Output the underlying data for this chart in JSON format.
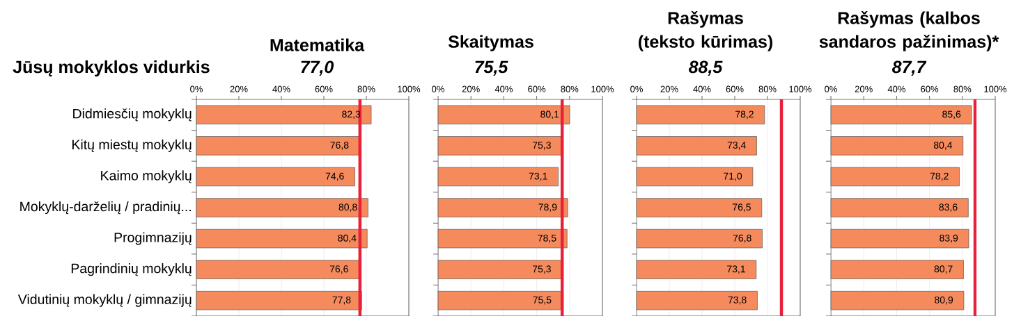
{
  "chart_data": [
    {
      "type": "bar",
      "orientation": "horizontal",
      "title": "Matematika",
      "subtitle": "77,0",
      "categories": [
        "Didmiesčių mokyklų",
        "Kitų miestų mokyklų",
        "Kaimo mokyklų",
        "Mokyklų-darželių / pradinių...",
        "Progimnazijų",
        "Pagrindinių mokyklų",
        "Vidutinių mokyklų / gimnazijų"
      ],
      "values": [
        82.3,
        76.8,
        74.6,
        80.8,
        80.4,
        76.6,
        77.8
      ],
      "value_labels": [
        "82,3",
        "76,8",
        "74,6",
        "80,8",
        "80,4",
        "76,6",
        "77,8"
      ],
      "color": "#f58a5c",
      "xlim": [
        0,
        100
      ],
      "xticks": [
        {
          "value": 0,
          "label": "0%"
        },
        {
          "value": 20,
          "label": "20%"
        },
        {
          "value": 40,
          "label": "40%"
        },
        {
          "value": 60,
          "label": "60%"
        },
        {
          "value": 80,
          "label": "80%"
        },
        {
          "value": 100,
          "label": "100%"
        }
      ],
      "grid": "x",
      "ref_lines": [
        {
          "axis": "x",
          "value": 77.0,
          "color": "#e8203a"
        }
      ],
      "annotations": [
        "Jūsų mokyklos vidurkis"
      ]
    },
    {
      "type": "bar",
      "orientation": "horizontal",
      "title": "Skaitymas",
      "subtitle": "75,5",
      "categories": [
        null,
        null,
        null,
        null,
        null,
        null,
        null
      ],
      "values": [
        80.1,
        75.3,
        73.1,
        78.9,
        78.5,
        75.3,
        75.5
      ],
      "value_labels": [
        "80,1",
        "75,3",
        "73,1",
        "78,9",
        "78,5",
        "75,3",
        "75,5"
      ],
      "color": "#f58a5c",
      "xlim": [
        0,
        100
      ],
      "xticks": [
        {
          "value": 0,
          "label": "0%"
        },
        {
          "value": 20,
          "label": "20%"
        },
        {
          "value": 40,
          "label": "40%"
        },
        {
          "value": 60,
          "label": "60%"
        },
        {
          "value": 80,
          "label": "80%"
        },
        {
          "value": 100,
          "label": "100%"
        }
      ],
      "grid": "x",
      "tick_labels": "x",
      "ref_lines": [
        {
          "axis": "x",
          "value": 75.5,
          "color": "#e8203a"
        }
      ]
    },
    {
      "type": "bar",
      "orientation": "horizontal",
      "title": "Rašymas (teksto kūrimas)",
      "subtitle": "88,5",
      "categories": [
        null,
        null,
        null,
        null,
        null,
        null,
        null
      ],
      "values": [
        78.2,
        73.4,
        71.0,
        76.5,
        76.8,
        73.1,
        73.8
      ],
      "value_labels": [
        "78,2",
        "73,4",
        "71,0",
        "76,5",
        "76,8",
        "73,1",
        "73,8"
      ],
      "color": "#f58a5c",
      "xlim": [
        0,
        100
      ],
      "xticks": [
        {
          "value": 0,
          "label": "0%"
        },
        {
          "value": 20,
          "label": "20%"
        },
        {
          "value": 40,
          "label": "40%"
        },
        {
          "value": 60,
          "label": "60%"
        },
        {
          "value": 80,
          "label": "80%"
        },
        {
          "value": 100,
          "label": "100%"
        }
      ],
      "grid": "x",
      "tick_labels": "x",
      "ref_lines": [
        {
          "axis": "x",
          "value": 88.5,
          "color": "#e8203a"
        }
      ]
    },
    {
      "type": "bar",
      "orientation": "horizontal",
      "title": "Rašymas (kalbos sandaros pažinimas)*",
      "subtitle": "87,7",
      "categories": [
        null,
        null,
        null,
        null,
        null,
        null,
        null
      ],
      "values": [
        85.6,
        80.4,
        78.2,
        83.6,
        83.9,
        80.7,
        80.9
      ],
      "value_labels": [
        "85,6",
        "80,4",
        "78,2",
        "83,6",
        "83,9",
        "80,7",
        "80,9"
      ],
      "color": "#f58a5c",
      "xlim": [
        0,
        100
      ],
      "xticks": [
        {
          "value": 0,
          "label": "0%"
        },
        {
          "value": 20,
          "label": "20%"
        },
        {
          "value": 40,
          "label": "40%"
        },
        {
          "value": 60,
          "label": "60%"
        },
        {
          "value": 80,
          "label": "80%"
        },
        {
          "value": 100,
          "label": "100%"
        }
      ],
      "grid": "x",
      "tick_labels": "x",
      "ref_lines": [
        {
          "axis": "x",
          "value": 87.7,
          "color": "#e8203a"
        }
      ]
    }
  ]
}
